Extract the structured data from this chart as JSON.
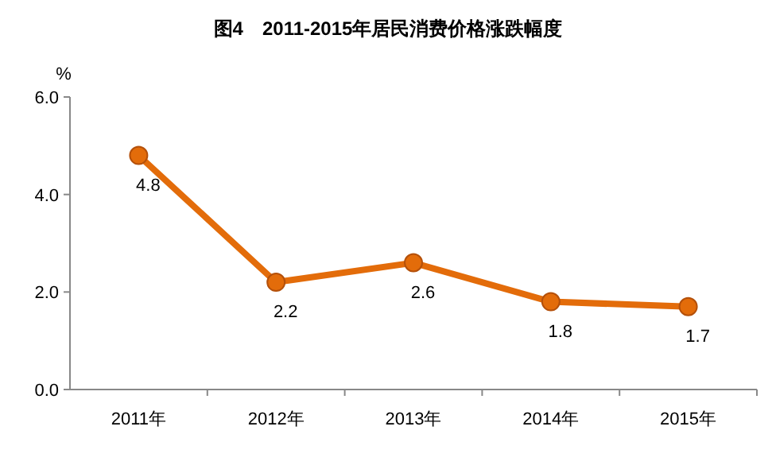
{
  "chart_data": {
    "type": "line",
    "title": "图4　2011-2015年居民消费价格涨跌幅度",
    "ylabel": "%",
    "categories": [
      "2011年",
      "2012年",
      "2013年",
      "2014年",
      "2015年"
    ],
    "series": [
      {
        "color": "#e36c0a",
        "values": [
          4.8,
          2.2,
          2.6,
          1.8,
          1.7
        ]
      }
    ],
    "ylim": [
      0,
      6
    ],
    "yticks": [
      {
        "value": 0,
        "label": "0.0"
      },
      {
        "value": 2,
        "label": "2.0"
      },
      {
        "value": 4,
        "label": "4.0"
      },
      {
        "value": 6,
        "label": "6.0"
      }
    ],
    "marker": "circle",
    "data_labels": true,
    "grid": false
  }
}
